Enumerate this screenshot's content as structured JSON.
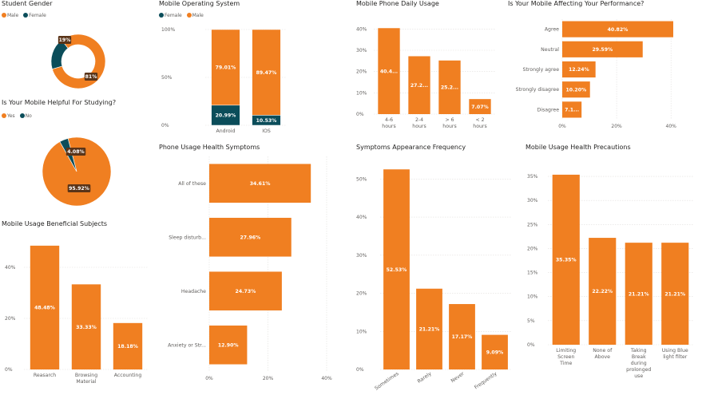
{
  "colors": {
    "orange": "#f07f21",
    "teal": "#0b4d5a",
    "grid": "#e1dfdd",
    "axis": "#605e5c",
    "label_bg": "#5a3418",
    "value_text": "#ffffff"
  },
  "chart_data": [
    {
      "id": "student-gender",
      "type": "pie",
      "style": "donut",
      "title": "Student Gender",
      "legend": [
        "Male",
        "Female"
      ],
      "slices": [
        {
          "name": "Male",
          "value": 81,
          "label": "81%",
          "color": "#f07f21"
        },
        {
          "name": "Female",
          "value": 19,
          "label": "19%",
          "color": "#0b4d5a"
        }
      ]
    },
    {
      "id": "mobile-helpful",
      "type": "pie",
      "title": "Is Your Mobile Helpful For Studying?",
      "legend": [
        "Yes",
        "No"
      ],
      "slices": [
        {
          "name": "Yes",
          "value": 95.92,
          "label": "95.92%",
          "color": "#f07f21"
        },
        {
          "name": "No",
          "value": 4.08,
          "label": "4.08%",
          "color": "#0b4d5a"
        }
      ]
    },
    {
      "id": "beneficial-subjects",
      "type": "bar",
      "title": "Mobile Usage Beneficial Subjects",
      "categories": [
        "Reasarch",
        "Browsing Material",
        "Accounting"
      ],
      "category_lines": [
        [
          "Reasarch"
        ],
        [
          "Browsing",
          "Material"
        ],
        [
          "Accounting"
        ]
      ],
      "values": [
        48.48,
        33.33,
        18.18
      ],
      "labels": [
        "48.48%",
        "33.33%",
        "18.18%"
      ],
      "ylim": [
        0,
        50
      ],
      "ticks": [
        0,
        20,
        40
      ],
      "tick_labels": [
        "0%",
        "20%",
        "40%"
      ]
    },
    {
      "id": "mobile-os",
      "type": "bar",
      "stacked": true,
      "title": "Mobile Operating System",
      "legend": [
        "Female",
        "Male"
      ],
      "categories": [
        "Android",
        "IOS"
      ],
      "series": [
        {
          "name": "Female",
          "values": [
            20.99,
            10.53
          ],
          "labels": [
            "20.99%",
            "10.53%"
          ],
          "color": "#0b4d5a"
        },
        {
          "name": "Male",
          "values": [
            79.01,
            89.47
          ],
          "labels": [
            "79.01%",
            "89.47%"
          ],
          "color": "#f07f21"
        }
      ],
      "ylim": [
        0,
        100
      ],
      "ticks": [
        0,
        50,
        100
      ],
      "tick_labels": [
        "0%",
        "50%",
        "100%"
      ]
    },
    {
      "id": "daily-usage",
      "type": "bar",
      "title": "Mobile Phone Daily Usage",
      "categories": [
        "4-6 hours",
        "2-4 hours",
        "> 6 hours",
        "< 2 hours"
      ],
      "category_lines": [
        [
          "4-6",
          "hours"
        ],
        [
          "2-4",
          "hours"
        ],
        [
          "> 6",
          "hours"
        ],
        [
          "< 2",
          "hours"
        ]
      ],
      "values": [
        40.4,
        27.2,
        25.2,
        7.07
      ],
      "labels": [
        "40.4...",
        "27.2...",
        "25.2...",
        "7.07%"
      ],
      "ylim": [
        0,
        42
      ],
      "ticks": [
        0,
        10,
        20,
        30,
        40
      ],
      "tick_labels": [
        "0%",
        "10%",
        "20%",
        "30%",
        "40%"
      ]
    },
    {
      "id": "performance",
      "type": "bar",
      "orientation": "horizontal",
      "title": "Is Your Mobile Affecting Your Performance?",
      "categories": [
        "Agree",
        "Neutral",
        "Strongly agree",
        "Strongly disagree",
        "Disagree"
      ],
      "values": [
        40.82,
        29.59,
        12.24,
        10.2,
        7.1
      ],
      "labels": [
        "40.82%",
        "29.59%",
        "12.24%",
        "10.20%",
        "7.1..."
      ],
      "xlim": [
        0,
        42
      ],
      "ticks": [
        0,
        20,
        40
      ],
      "tick_labels": [
        "0%",
        "20%",
        "40%"
      ]
    },
    {
      "id": "health-symptoms",
      "type": "bar",
      "orientation": "horizontal",
      "title": "Phone Usage Health Symptoms",
      "categories": [
        "All of these",
        "Sleep disturb...",
        "Headache",
        "Anxiety or Str..."
      ],
      "values": [
        34.61,
        27.96,
        24.73,
        12.9
      ],
      "labels": [
        "34.61%",
        "27.96%",
        "24.73%",
        "12.90%"
      ],
      "xlim": [
        0,
        40
      ],
      "ticks": [
        0,
        20,
        40
      ],
      "tick_labels": [
        "0%",
        "20%",
        "40%"
      ]
    },
    {
      "id": "symptom-frequency",
      "type": "bar",
      "title": "Symptoms Appearance Frequency",
      "categories": [
        "Sometimes",
        "Rarely",
        "Never",
        "Frequently"
      ],
      "values": [
        52.53,
        21.21,
        17.17,
        9.09
      ],
      "labels": [
        "52.53%",
        "21.21%",
        "17.17%",
        "9.09%"
      ],
      "ylim": [
        0,
        53
      ],
      "ticks": [
        0,
        10,
        20,
        30,
        40,
        50
      ],
      "tick_labels": [
        "0%",
        "10%",
        "20%",
        "30%",
        "40%",
        "50%"
      ]
    },
    {
      "id": "health-precautions",
      "type": "bar",
      "title": "Mobile Usage Health Precautions",
      "categories": [
        "Limiting Screen Time",
        "None of Above",
        "Taking Break during prolonged use",
        "Using Blue light filter"
      ],
      "category_lines": [
        [
          "Limiting",
          "Screen",
          "Time"
        ],
        [
          "None of",
          "Above"
        ],
        [
          "Taking",
          "Break",
          "during",
          "prolonged",
          "use"
        ],
        [
          "Using Blue",
          "light filter"
        ]
      ],
      "values": [
        35.35,
        22.22,
        21.21,
        21.21
      ],
      "labels": [
        "35.35%",
        "22.22%",
        "21.21%",
        "21.21%"
      ],
      "ylim": [
        0,
        36
      ],
      "ticks": [
        0,
        5,
        10,
        15,
        20,
        25,
        30,
        35
      ],
      "tick_labels": [
        "0%",
        "5%",
        "10%",
        "15%",
        "20%",
        "25%",
        "30%",
        "35%"
      ]
    }
  ]
}
